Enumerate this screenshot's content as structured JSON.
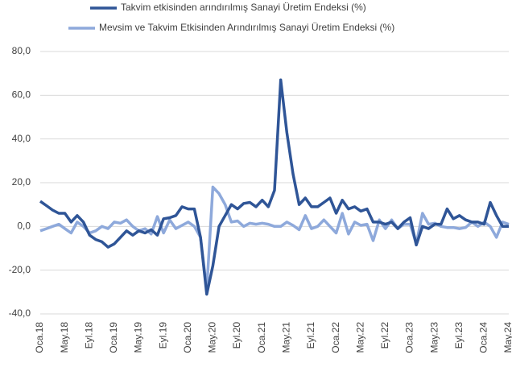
{
  "chart_data": {
    "type": "line",
    "categories": [
      "Oca.18",
      null,
      null,
      null,
      "May.18",
      null,
      null,
      null,
      "Eyl.18",
      null,
      null,
      null,
      "Oca.19",
      null,
      null,
      null,
      "May.19",
      null,
      null,
      null,
      "Eyl.19",
      null,
      null,
      null,
      "Oca.20",
      null,
      null,
      null,
      "May.20",
      null,
      null,
      null,
      "Eyl.20",
      null,
      null,
      null,
      "Oca.21",
      null,
      null,
      null,
      "May.21",
      null,
      null,
      null,
      "Eyl.21",
      null,
      null,
      null,
      "Oca.22",
      null,
      null,
      null,
      "May.22",
      null,
      null,
      null,
      "Eyl.22",
      null,
      null,
      null,
      "Oca.23",
      null,
      null,
      null,
      "May.23",
      null,
      null,
      null,
      "Eyl.23",
      null,
      null,
      null,
      "Oca.24",
      null,
      null,
      null,
      "May.24"
    ],
    "series": [
      {
        "name": "Takvim etkisinden arındırılmış Sanayi Üretim Endeksi (%)",
        "color": "#2f5597",
        "values": [
          11.5,
          9.5,
          7.5,
          6,
          6,
          2,
          5,
          2,
          -4,
          -6,
          -7,
          -9.5,
          -8,
          -5,
          -2,
          -4,
          -2,
          -3,
          -1.5,
          -4,
          3.5,
          4,
          5,
          9,
          8,
          8,
          -5,
          -31,
          -18,
          0,
          5,
          10,
          8,
          10.5,
          11,
          9,
          12,
          9,
          16.5,
          67,
          43,
          24,
          10,
          13,
          9,
          9,
          11,
          13,
          6,
          12,
          8,
          9,
          7,
          8,
          2,
          2,
          1,
          2,
          -1,
          2,
          4,
          -8.5,
          0,
          -1,
          1,
          1,
          8,
          3.5,
          5,
          3,
          2,
          2,
          1,
          11,
          5,
          0,
          0
        ]
      },
      {
        "name": "Mevsim ve Takvim Etkisinden Arındırılmış Sanayi Üretim Endeksi (%)",
        "color": "#8ea9db",
        "values": [
          -2,
          -1,
          0,
          1,
          -1,
          -3,
          2,
          0,
          -3,
          -2,
          0,
          -1,
          2,
          1.5,
          3,
          0,
          -2,
          -1,
          -3.5,
          4.5,
          -3,
          3,
          -1,
          0.5,
          2,
          0,
          -5,
          -29,
          18,
          15,
          10,
          2,
          2.5,
          0,
          1.5,
          1,
          1.5,
          1,
          0,
          0,
          2,
          0.5,
          -1.5,
          5,
          -1,
          0,
          3,
          0,
          -3,
          6,
          -3.5,
          2,
          0.5,
          1,
          -6.5,
          3,
          -1,
          3,
          -1,
          1,
          1,
          -8,
          6,
          1,
          1.5,
          0,
          -0.5,
          -0.5,
          -1,
          -0.5,
          2,
          0,
          2,
          0,
          -5,
          2,
          1
        ]
      }
    ],
    "ylim": [
      -40,
      80
    ],
    "yticks": [
      {
        "value": -40,
        "label": "-40,0"
      },
      {
        "value": -20,
        "label": "-20,0"
      },
      {
        "value": 0,
        "label": "0,0"
      },
      {
        "value": 20,
        "label": "20,0"
      },
      {
        "value": 40,
        "label": "40,0"
      },
      {
        "value": 60,
        "label": "60,0"
      },
      {
        "value": 80,
        "label": "80,0"
      }
    ],
    "grid": true,
    "legend": "top"
  }
}
